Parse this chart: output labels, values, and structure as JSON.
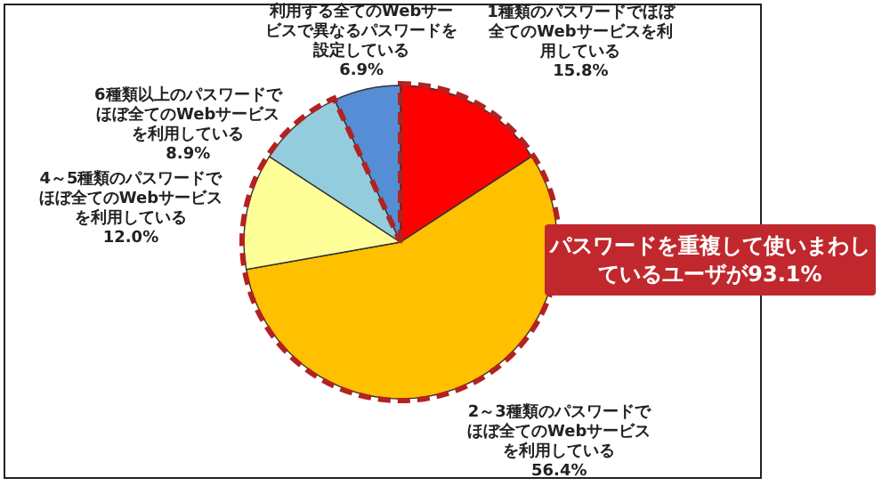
{
  "chart_data": {
    "type": "pie",
    "categories": [
      "1種類のパスワードでほぼ全てのWebサービスを利用している",
      "2～3種類のパスワードでほぼ全てのWebサービスを利用している",
      "4～5種類のパスワードでほぼ全てのWebサービスを利用している",
      "6種類以上のパスワードでほぼ全てのWebサービスを利用している",
      "利用する全てのWebサービスで異なるパスワードを設定している"
    ],
    "values": [
      15.8,
      56.4,
      12.0,
      8.9,
      6.9
    ],
    "value_labels": [
      "15.8%",
      "56.4%",
      "12.0%",
      "8.9%",
      "6.9%"
    ],
    "colors": [
      "#ff0000",
      "#ffc000",
      "#ffff99",
      "#93cddd",
      "#558ed5"
    ],
    "annotations": [
      "パスワードを重複して使いまわしているユーザが93.1%"
    ]
  }
}
